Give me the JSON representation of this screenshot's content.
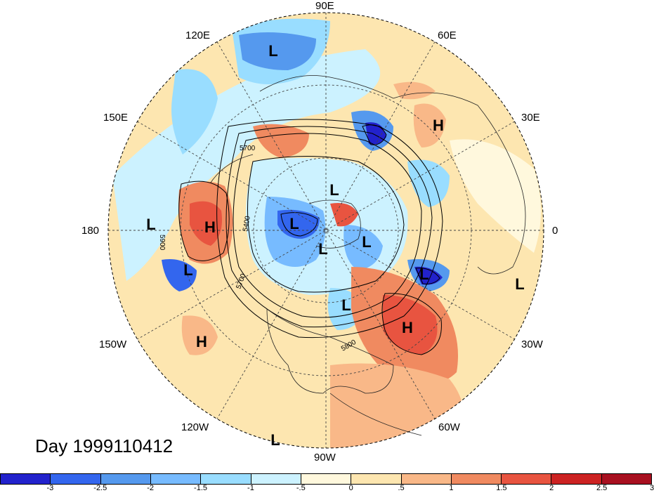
{
  "title": "Day 1999110412",
  "lon_labels": {
    "e90": "90E",
    "e60": "60E",
    "e120": "120E",
    "e30": "30E",
    "e150": "150E",
    "e0": "0",
    "w180": "180",
    "w30": "30W",
    "w150": "150W",
    "w60": "60W",
    "w120": "120W",
    "w90": "90W"
  },
  "contours": [
    "5700",
    "5400",
    "5900",
    "5700",
    "5800"
  ],
  "centers": [
    {
      "type": "L"
    },
    {
      "type": "H"
    },
    {
      "type": "L"
    },
    {
      "type": "L"
    },
    {
      "type": "H"
    },
    {
      "type": "L"
    },
    {
      "type": "L"
    },
    {
      "type": "L"
    },
    {
      "type": "L"
    },
    {
      "type": "L"
    },
    {
      "type": "H"
    },
    {
      "type": "L"
    },
    {
      "type": "H"
    },
    {
      "type": "L"
    },
    {
      "type": "L"
    }
  ],
  "colorbar": {
    "colors": [
      "#2222cc",
      "#3366ee",
      "#5599ee",
      "#77bbff",
      "#99ddff",
      "#ccf2ff",
      "#fff8dd",
      "#fde6b0",
      "#f9b888",
      "#f08a60",
      "#e85440",
      "#cc2222",
      "#a81020"
    ],
    "labels": [
      "-3",
      "-2.5",
      "-2",
      "-1.5",
      "-1",
      "-.5",
      "0",
      ".5",
      "1",
      "1.5",
      "2",
      "2.5",
      "3"
    ]
  }
}
